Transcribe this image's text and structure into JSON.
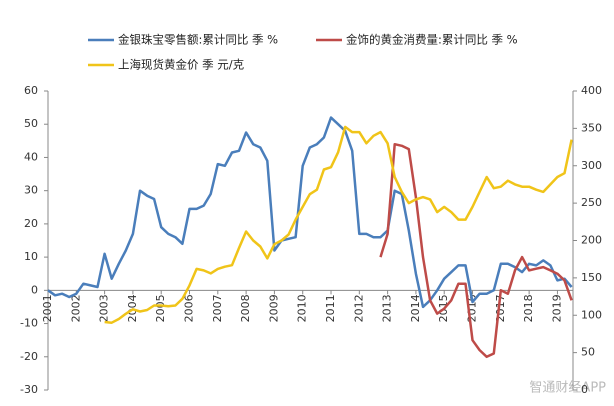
{
  "chart_data": {
    "type": "line",
    "x": [
      2001,
      2001.25,
      2001.5,
      2001.75,
      2002,
      2002.25,
      2002.5,
      2002.75,
      2003,
      2003.25,
      2003.5,
      2003.75,
      2004,
      2004.25,
      2004.5,
      2004.75,
      2005,
      2005.25,
      2005.5,
      2005.75,
      2006,
      2006.25,
      2006.5,
      2006.75,
      2007,
      2007.25,
      2007.5,
      2007.75,
      2008,
      2008.25,
      2008.5,
      2008.75,
      2009,
      2009.25,
      2009.5,
      2009.75,
      2010,
      2010.25,
      2010.5,
      2010.75,
      2011,
      2011.25,
      2011.5,
      2011.75,
      2012,
      2012.25,
      2012.5,
      2012.75,
      2013,
      2013.25,
      2013.5,
      2013.75,
      2014,
      2014.25,
      2014.5,
      2014.75,
      2015,
      2015.25,
      2015.5,
      2015.75,
      2016,
      2016.25,
      2016.5,
      2016.75,
      2017,
      2017.25,
      2017.5,
      2017.75,
      2018,
      2018.25,
      2018.5,
      2018.75,
      2019,
      2019.25,
      2019.5
    ],
    "series": [
      {
        "name": "金银珠宝零售额:累计同比 季 %",
        "color": "#4a7ebb",
        "axis": "y",
        "values": [
          0,
          -1.5,
          -1,
          -2,
          -1,
          2,
          1.5,
          1,
          11,
          3.5,
          8,
          12,
          17,
          30,
          28.5,
          27.5,
          19,
          17,
          16,
          14,
          24.5,
          24.5,
          25.5,
          29,
          38,
          37.5,
          41.5,
          42,
          47.5,
          44,
          43,
          39,
          12,
          15,
          15.5,
          16,
          37.5,
          43,
          44,
          46,
          52,
          50,
          48,
          42,
          17,
          17,
          16,
          16,
          18,
          30,
          29,
          18,
          5,
          -5,
          -3,
          0,
          3.5,
          5.5,
          7.5,
          7.5,
          -3.5,
          -1,
          -1,
          0,
          8,
          8,
          7,
          5.5,
          8,
          7.5,
          9,
          7.5,
          3,
          3.5,
          1
        ]
      },
      {
        "name": "金饰的黄金消费量:累计同比 季 %",
        "color": "#be4b48",
        "axis": "y",
        "values": [
          null,
          null,
          null,
          null,
          null,
          null,
          null,
          null,
          null,
          null,
          null,
          null,
          null,
          null,
          null,
          null,
          null,
          null,
          null,
          null,
          null,
          null,
          null,
          null,
          null,
          null,
          null,
          null,
          null,
          null,
          null,
          null,
          null,
          null,
          null,
          null,
          null,
          null,
          null,
          null,
          null,
          null,
          null,
          null,
          null,
          null,
          null,
          10,
          17,
          44,
          43.5,
          42.5,
          28,
          10,
          -3,
          -7,
          -5.5,
          -3,
          2,
          2,
          -15,
          -18,
          -20,
          -19,
          0,
          -1,
          6,
          10,
          6,
          6.5,
          7,
          6,
          5,
          3,
          -3
        ]
      },
      {
        "name": "上海现货黄金价 季 元/克",
        "color": "#f0c419",
        "axis": "y2",
        "values": [
          null,
          null,
          null,
          null,
          null,
          null,
          null,
          null,
          91,
          90,
          95,
          102,
          108,
          105,
          107,
          113,
          113,
          112,
          113,
          122,
          140,
          162,
          160,
          156,
          162,
          165,
          167,
          190,
          212,
          200,
          192,
          176,
          195,
          200,
          208,
          228,
          245,
          262,
          268,
          295,
          298,
          318,
          352,
          345,
          345,
          330,
          340,
          345,
          330,
          285,
          265,
          250,
          255,
          258,
          255,
          238,
          245,
          238,
          228,
          228,
          245,
          265,
          285,
          270,
          272,
          280,
          275,
          272,
          272,
          268,
          265,
          275,
          285,
          290,
          335
        ]
      }
    ],
    "xlim": [
      2001,
      2019.55
    ],
    "xticks": [
      2001,
      2002,
      2003,
      2004,
      2005,
      2006,
      2007,
      2008,
      2009,
      2010,
      2011,
      2012,
      2013,
      2014,
      2015,
      2016,
      2017,
      2018,
      2019
    ],
    "ylim": [
      -30,
      60
    ],
    "yticks": [
      -30,
      -20,
      -10,
      0,
      10,
      20,
      30,
      40,
      50,
      60
    ],
    "y2lim": [
      0,
      400
    ],
    "y2ticks": [
      0,
      50,
      100,
      150,
      200,
      250,
      300,
      350,
      400
    ],
    "grid": false,
    "watermark": "智通财经APP"
  }
}
